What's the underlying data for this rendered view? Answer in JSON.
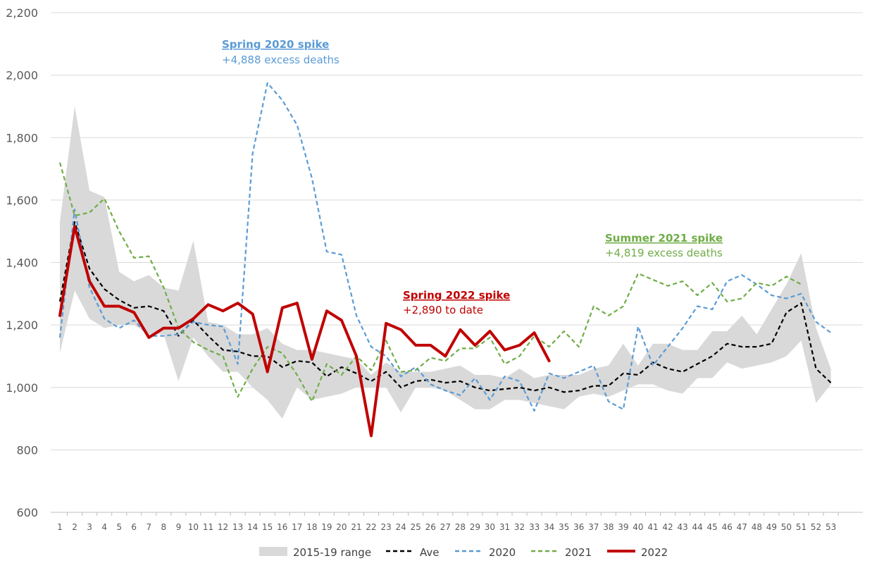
{
  "chart_data": {
    "type": "line",
    "title": "",
    "xlabel": "",
    "ylabel": "",
    "ylim": [
      600,
      2200
    ],
    "yticks": [
      600,
      800,
      1000,
      1200,
      1400,
      1600,
      1800,
      2000,
      2200
    ],
    "ytick_labels": [
      "600",
      "800",
      "1,000",
      "1,200",
      "1,400",
      "1,600",
      "1,800",
      "2,000",
      "2,200"
    ],
    "x": [
      1,
      2,
      3,
      4,
      5,
      6,
      7,
      8,
      9,
      10,
      11,
      12,
      13,
      14,
      15,
      16,
      17,
      18,
      19,
      20,
      21,
      22,
      23,
      24,
      25,
      26,
      27,
      28,
      29,
      30,
      31,
      32,
      33,
      34,
      35,
      36,
      37,
      38,
      39,
      40,
      41,
      42,
      43,
      44,
      45,
      46,
      47,
      48,
      49,
      50,
      51,
      52,
      53
    ],
    "grid": "horizontal",
    "legend": "bottom",
    "range": {
      "name": "2015-19 range",
      "color": "#d9d9d9",
      "low": [
        1110,
        1310,
        1220,
        1190,
        1200,
        1200,
        1170,
        1170,
        1020,
        1160,
        1100,
        1050,
        1050,
        1000,
        960,
        900,
        1000,
        960,
        970,
        980,
        1000,
        1000,
        1000,
        920,
        1000,
        1000,
        990,
        960,
        930,
        930,
        960,
        960,
        950,
        940,
        930,
        970,
        980,
        970,
        990,
        1010,
        1010,
        990,
        980,
        1030,
        1030,
        1080,
        1060,
        1070,
        1080,
        1100,
        1150,
        950,
        1010
      ],
      "high": [
        1530,
        1900,
        1630,
        1610,
        1370,
        1340,
        1360,
        1320,
        1310,
        1470,
        1210,
        1200,
        1170,
        1170,
        1190,
        1140,
        1120,
        1120,
        1110,
        1100,
        1090,
        1040,
        1080,
        1050,
        1050,
        1050,
        1060,
        1070,
        1040,
        1040,
        1030,
        1060,
        1030,
        1040,
        1040,
        1040,
        1060,
        1070,
        1140,
        1070,
        1140,
        1140,
        1120,
        1120,
        1180,
        1180,
        1230,
        1170,
        1250,
        1330,
        1430,
        1190,
        1060
      ]
    },
    "series": [
      {
        "name": "Ave",
        "style": "dashed",
        "color": "#000000",
        "values": [
          1275,
          1530,
          1380,
          1315,
          1280,
          1255,
          1260,
          1245,
          1165,
          1215,
          1165,
          1120,
          1115,
          1100,
          1100,
          1065,
          1085,
          1080,
          1035,
          1065,
          1045,
          1020,
          1050,
          1000,
          1020,
          1025,
          1015,
          1020,
          1000,
          990,
          995,
          1000,
          990,
          1000,
          985,
          990,
          1005,
          1005,
          1045,
          1040,
          1080,
          1060,
          1050,
          1075,
          1100,
          1140,
          1130,
          1130,
          1140,
          1240,
          1270,
          1060,
          1015
        ]
      },
      {
        "name": "2020",
        "style": "dashed",
        "color": "#5b9bd5",
        "values": [
          1160,
          1570,
          1320,
          1220,
          1190,
          1215,
          1165,
          1165,
          1170,
          1210,
          1200,
          1195,
          1075,
          1750,
          1975,
          1920,
          1840,
          1670,
          1435,
          1425,
          1230,
          1130,
          1100,
          1035,
          1065,
          1010,
          990,
          975,
          1030,
          960,
          1035,
          1020,
          925,
          1045,
          1030,
          1050,
          1070,
          955,
          930,
          1195,
          1070,
          1130,
          1190,
          1260,
          1250,
          1340,
          1360,
          1330,
          1295,
          1285,
          1300,
          1210,
          1175
        ]
      },
      {
        "name": "2021",
        "style": "dashed",
        "color": "#70ad47",
        "values": [
          1720,
          1550,
          1560,
          1605,
          1500,
          1415,
          1420,
          1320,
          1190,
          1145,
          1120,
          1100,
          970,
          1060,
          1130,
          1110,
          1040,
          955,
          1075,
          1040,
          1100,
          1055,
          1150,
          1050,
          1055,
          1095,
          1085,
          1125,
          1125,
          1160,
          1075,
          1100,
          1165,
          1130,
          1180,
          1130,
          1260,
          1230,
          1260,
          1365,
          1345,
          1325,
          1340,
          1295,
          1335,
          1275,
          1285,
          1335,
          1325,
          1355,
          1330,
          null,
          null
        ]
      },
      {
        "name": "2022",
        "style": "solid",
        "color": "#c00000",
        "values": [
          1230,
          1515,
          1340,
          1260,
          1260,
          1240,
          1160,
          1190,
          1190,
          1220,
          1265,
          1245,
          1270,
          1235,
          1050,
          1255,
          1270,
          1090,
          1245,
          1215,
          1100,
          845,
          1205,
          1185,
          1135,
          1135,
          1100,
          1185,
          1135,
          1180,
          1120,
          1135,
          1175,
          1085,
          null,
          null,
          null,
          null,
          null,
          null,
          null,
          null,
          null,
          null,
          null,
          null,
          null,
          null,
          null,
          null,
          null,
          null,
          null
        ]
      }
    ],
    "annotations": [
      {
        "title": "Spring 2020 spike ",
        "text": "+4,888 excess deaths",
        "color": "#5b9bd5"
      },
      {
        "title": "Summer 2021 spike",
        "text": "+4,819 excess deaths",
        "color": "#70ad47"
      },
      {
        "title": "Spring 2022 spike ",
        "text": "+2,890 to date",
        "color": "#c00000"
      }
    ]
  }
}
